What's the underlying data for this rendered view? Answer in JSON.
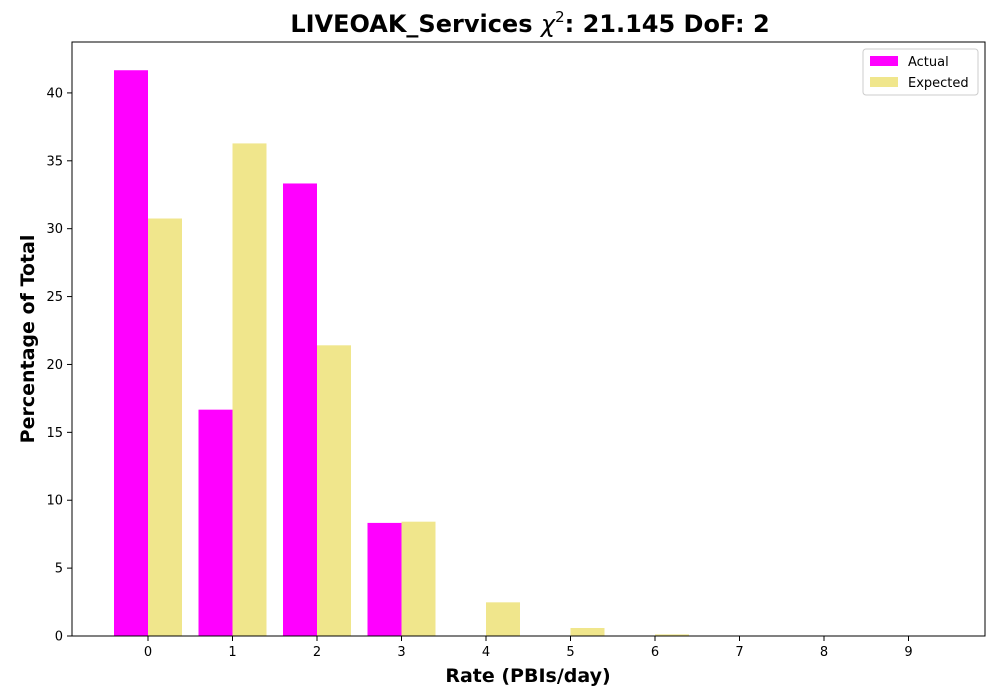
{
  "chart_data": {
    "type": "bar",
    "title": {
      "prefix": "LIVEOAK_Services ",
      "chi_symbol": "χ",
      "chi_exponent": "2",
      "suffix": ": 21.145 DoF: 2"
    },
    "xlabel": "Rate (PBIs/day)",
    "ylabel": "Percentage of Total",
    "categories": [
      "0",
      "1",
      "2",
      "3",
      "4",
      "5",
      "6",
      "7",
      "8",
      "9"
    ],
    "series": [
      {
        "name": "Actual",
        "color": "#ff00ff",
        "values": [
          41.67,
          16.67,
          33.33,
          8.33,
          0,
          0,
          0,
          0,
          0,
          0
        ]
      },
      {
        "name": "Expected",
        "color": "#f0e68c",
        "values": [
          30.75,
          36.28,
          21.41,
          8.42,
          2.48,
          0.59,
          0.12,
          0.02,
          0.0,
          0.0
        ]
      }
    ],
    "yticks": [
      0,
      5,
      10,
      15,
      20,
      25,
      30,
      35,
      40
    ],
    "ylim": [
      0,
      43.75
    ],
    "grid": false,
    "legend_position": "top-right"
  }
}
